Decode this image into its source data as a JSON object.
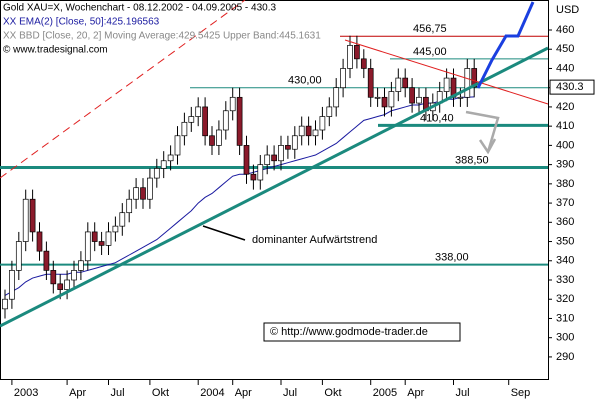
{
  "chart_data": {
    "type": "candlestick",
    "title": "Gold XAU=X, Wochenchart - 08.12.2002 - 04.09.2005 - 430.3",
    "indicator_1": "XX EMA(2) [Close, 50]:425.196563",
    "indicator_2": "XX BBD [Close, 20, 2] Moving Average:429.5425 Upper Band:445.1631",
    "source": "© www.tradesignal.com",
    "copyright": "© http://www.godmode-trader.de",
    "annotation": "dominanter Aufwärtstrend",
    "y_unit": "USD",
    "ylim": [
      278,
      473
    ],
    "yticks": [
      290,
      300,
      310,
      320,
      330,
      340,
      350,
      360,
      370,
      380,
      390,
      400,
      410,
      420,
      430,
      440,
      450,
      460
    ],
    "up_color": "#ffffff",
    "down_color": "#8b1a2b",
    "categories": [
      null,
      "2003",
      null,
      null,
      null,
      null,
      null,
      null,
      null,
      "Apr",
      null,
      null,
      null,
      null,
      null,
      "Jul",
      null,
      null,
      null,
      null,
      null,
      "Okt",
      null,
      null,
      null,
      null,
      null,
      null,
      "2004",
      null,
      null,
      null,
      null,
      "Apr",
      null,
      null,
      null,
      null,
      null,
      null,
      "Jul",
      null,
      null,
      null,
      null,
      null,
      "Okt",
      null,
      null,
      null,
      null,
      null,
      null,
      "2005",
      null,
      null,
      null,
      null,
      "Apr",
      null,
      null,
      null,
      null,
      null,
      null,
      "Jul",
      null,
      null,
      null,
      null,
      null,
      null,
      null,
      "Sep"
    ],
    "open": [
      315,
      320,
      335,
      350,
      372,
      355,
      345,
      335,
      328,
      325,
      330,
      335,
      340,
      355,
      350,
      348,
      355,
      358,
      365,
      372,
      378,
      372,
      383,
      388,
      392,
      395,
      405,
      412,
      415,
      420,
      405,
      400,
      408,
      418,
      425,
      400,
      385,
      382,
      390,
      395,
      392,
      400,
      398,
      405,
      410,
      405,
      408,
      415,
      420,
      430,
      440,
      452,
      445,
      440,
      425,
      425,
      420,
      428,
      435,
      430,
      422,
      425,
      418,
      422,
      428,
      435,
      425,
      425,
      440,
      null,
      null,
      null,
      null,
      null
    ],
    "high": [
      325,
      340,
      355,
      377,
      377,
      360,
      350,
      340,
      333,
      335,
      340,
      345,
      360,
      360,
      355,
      360,
      363,
      370,
      377,
      383,
      383,
      388,
      393,
      397,
      400,
      410,
      417,
      420,
      425,
      425,
      410,
      413,
      423,
      430,
      430,
      405,
      390,
      395,
      400,
      400,
      405,
      405,
      410,
      415,
      415,
      413,
      420,
      425,
      435,
      445,
      457,
      457,
      450,
      445,
      430,
      430,
      433,
      440,
      440,
      435,
      430,
      430,
      427,
      433,
      440,
      440,
      430,
      445,
      445,
      null,
      null,
      null,
      null,
      null
    ],
    "low": [
      310,
      315,
      330,
      345,
      350,
      340,
      330,
      323,
      320,
      320,
      325,
      330,
      335,
      345,
      343,
      343,
      350,
      353,
      360,
      367,
      367,
      367,
      378,
      383,
      387,
      390,
      400,
      407,
      410,
      400,
      395,
      395,
      403,
      413,
      395,
      380,
      377,
      377,
      385,
      387,
      387,
      393,
      393,
      400,
      400,
      400,
      403,
      410,
      415,
      425,
      435,
      440,
      435,
      420,
      420,
      415,
      415,
      423,
      425,
      417,
      417,
      413,
      413,
      417,
      423,
      420,
      420,
      420,
      425,
      null,
      null,
      null,
      null,
      null
    ],
    "close": [
      320,
      335,
      350,
      372,
      355,
      345,
      335,
      328,
      325,
      330,
      335,
      340,
      355,
      350,
      348,
      355,
      358,
      365,
      372,
      378,
      372,
      383,
      388,
      392,
      395,
      405,
      412,
      415,
      420,
      405,
      400,
      408,
      418,
      425,
      400,
      385,
      382,
      390,
      395,
      392,
      400,
      398,
      405,
      410,
      405,
      408,
      415,
      420,
      430,
      440,
      452,
      445,
      440,
      425,
      425,
      420,
      428,
      435,
      430,
      422,
      425,
      418,
      422,
      428,
      435,
      425,
      425,
      440,
      430.3,
      null,
      null,
      null,
      null,
      null
    ],
    "ema": {
      "color": "#1a1aa0",
      "values": [
        322,
        324,
        326,
        329,
        331,
        332,
        333,
        333,
        333,
        333,
        334,
        334,
        335,
        336,
        337,
        338,
        339,
        341,
        343,
        345,
        347,
        349,
        351,
        354,
        357,
        360,
        363,
        366,
        370,
        373,
        375,
        378,
        381,
        384,
        385,
        385,
        386,
        387,
        388,
        389,
        390,
        391,
        392,
        393,
        394,
        395,
        397,
        399,
        401,
        404,
        407,
        410,
        413,
        414,
        415,
        416,
        418,
        419,
        420,
        421,
        421,
        422,
        422,
        423,
        424,
        424,
        425,
        425,
        425.196563,
        null,
        null,
        null,
        null,
        null
      ]
    },
    "levels": [
      {
        "value": 456.75,
        "label": "456,75",
        "color": "#c00000"
      },
      {
        "value": 445,
        "label": "445,00",
        "color": "#1b8a7e"
      },
      {
        "value": 430,
        "label": "430,00",
        "color": "#1b8a7e"
      },
      {
        "value": 410.4,
        "label": "410,40",
        "color": "#1b8a7e"
      },
      {
        "value": 388.5,
        "label": "388,50",
        "color": "#1b8a7e"
      },
      {
        "value": 338,
        "label": "338,00",
        "color": "#1b8a7e"
      }
    ]
  }
}
